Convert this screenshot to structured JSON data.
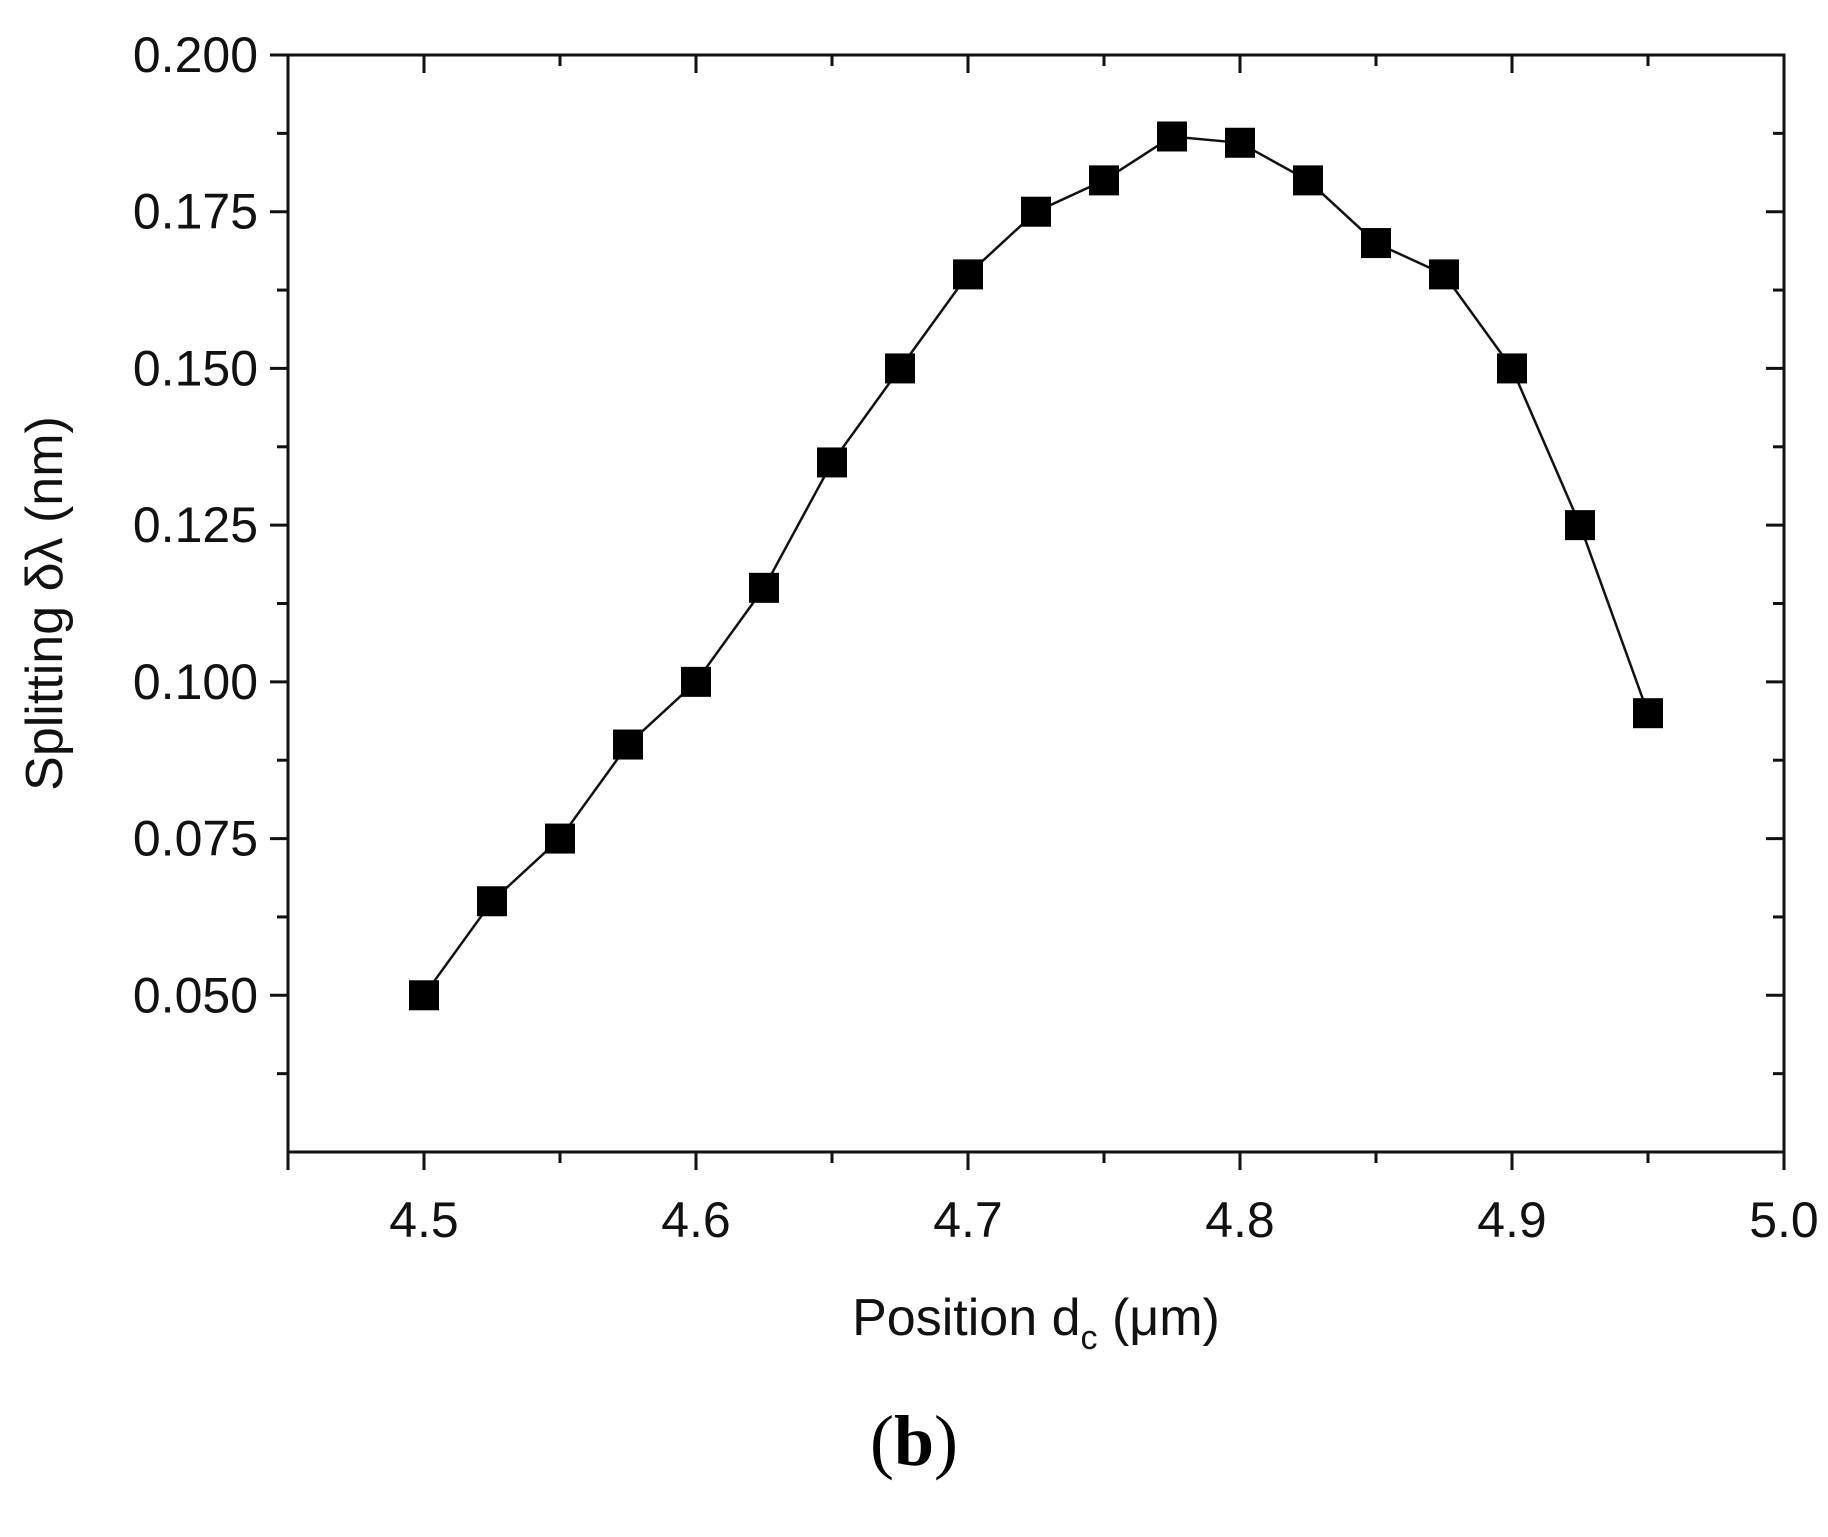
{
  "chart_data": {
    "type": "line",
    "marker": "square",
    "xlabel_prefix": "Position d",
    "xlabel_subscript": "c",
    "xlabel_suffix": " (μm)",
    "ylabel": "Splitting δλ (nm)",
    "xlim": [
      4.45,
      5.0
    ],
    "ylim": [
      0.025,
      0.2
    ],
    "xticks": [
      "4.5",
      "4.6",
      "4.7",
      "4.8",
      "4.9",
      "5.0"
    ],
    "yticks": [
      "0.050",
      "0.075",
      "0.100",
      "0.125",
      "0.150",
      "0.175",
      "0.200"
    ],
    "grid": false,
    "x": [
      4.5,
      4.525,
      4.55,
      4.575,
      4.6,
      4.625,
      4.65,
      4.675,
      4.7,
      4.725,
      4.75,
      4.775,
      4.8,
      4.825,
      4.85,
      4.875,
      4.9,
      4.925,
      4.95
    ],
    "y": [
      0.05,
      0.065,
      0.075,
      0.09,
      0.1,
      0.115,
      0.135,
      0.15,
      0.165,
      0.175,
      0.18,
      0.187,
      0.186,
      0.18,
      0.17,
      0.165,
      0.15,
      0.125,
      0.095
    ]
  },
  "panel_label": "b"
}
